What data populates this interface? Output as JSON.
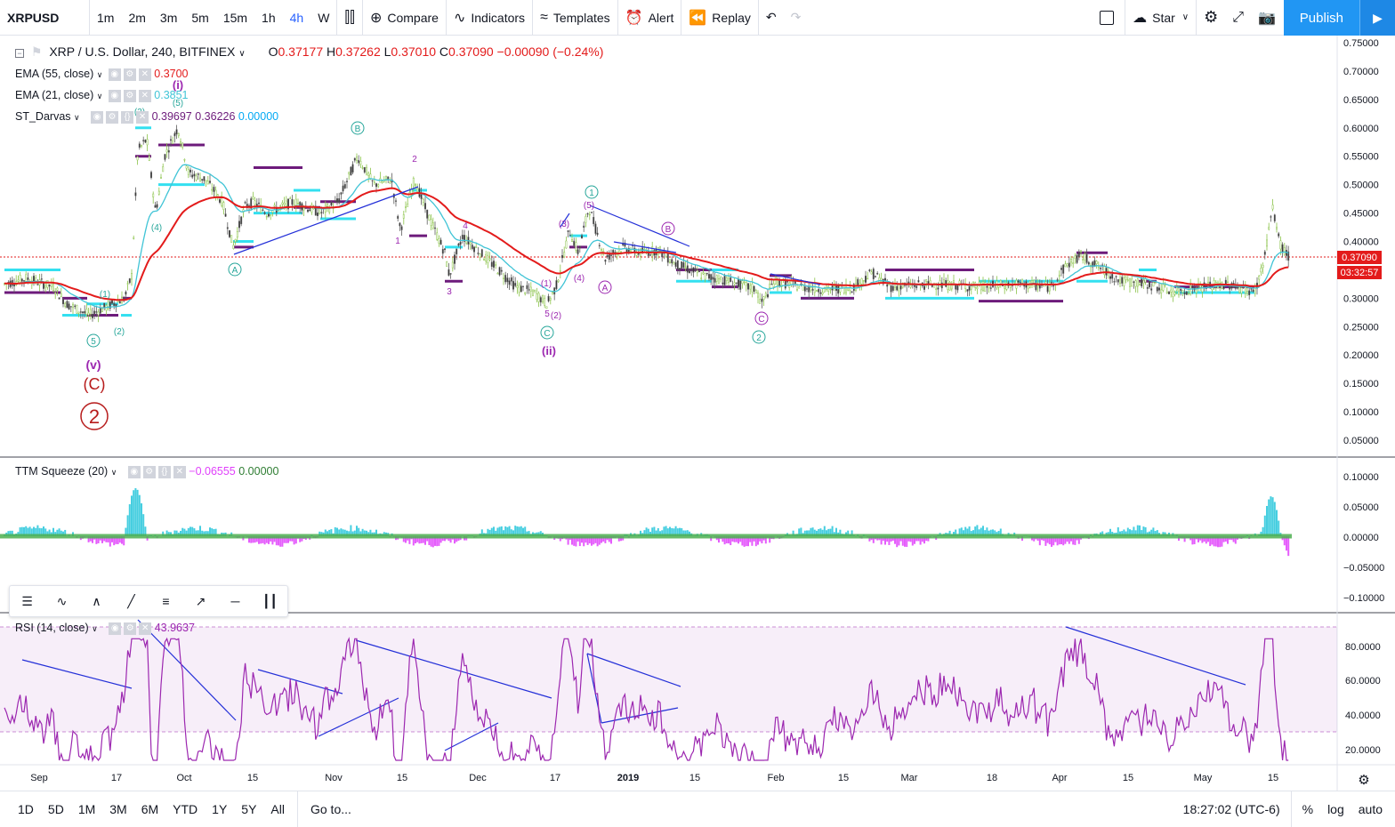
{
  "toolbar": {
    "symbol": "XRPUSD",
    "intervals": [
      "1m",
      "2m",
      "3m",
      "5m",
      "15m",
      "1h",
      "4h",
      "W"
    ],
    "active_interval": "4h",
    "compare": "Compare",
    "indicators": "Indicators",
    "templates": "Templates",
    "alert": "Alert",
    "replay": "Replay",
    "star": "Star",
    "publish": "Publish"
  },
  "legend": {
    "title": "XRP / U.S. Dollar, 240, BITFINEX",
    "o_label": "O",
    "o": "0.37177",
    "h_label": "H",
    "h": "0.37262",
    "l_label": "L",
    "l": "0.37010",
    "c_label": "C",
    "c": "0.37090",
    "change": "−0.00090 (−0.24%)",
    "ema55_name": "EMA (55, close)",
    "ema55_val": "0.3700",
    "ema21_name": "EMA (21, close)",
    "ema21_val": "0.3851",
    "darvas_name": "ST_Darvas",
    "darvas_v1": "0.39697",
    "darvas_v2": "0.36226",
    "darvas_v3": "0.00000",
    "ttm_name": "TTM Squeeze (20)",
    "ttm_v1": "−0.06555",
    "ttm_v2": "0.00000",
    "rsi_name": "RSI (14, close)",
    "rsi_val": "43.9637"
  },
  "price_axis": [
    "0.75000",
    "0.70000",
    "0.65000",
    "0.60000",
    "0.55000",
    "0.50000",
    "0.45000",
    "0.40000",
    "0.35000",
    "0.30000",
    "0.25000",
    "0.20000",
    "0.15000",
    "0.10000",
    "0.05000"
  ],
  "last_price": "0.37090",
  "countdown": "03:32:57",
  "ttm_axis": [
    "0.10000",
    "0.05000",
    "0.00000",
    "−0.05000",
    "−0.10000"
  ],
  "rsi_axis": [
    "80.0000",
    "60.0000",
    "40.0000",
    "20.0000"
  ],
  "time_axis": [
    "Sep",
    "17",
    "Oct",
    "15",
    "Nov",
    "15",
    "Dec",
    "17",
    "2019",
    "15",
    "Feb",
    "15",
    "Mar",
    "18",
    "Apr",
    "15",
    "May",
    "15"
  ],
  "wave_labels": {
    "v": "(v)",
    "C": "(C)",
    "two": "2",
    "i": "(i)",
    "ii": "(ii)",
    "w5a": "5",
    "w5b": "(5)",
    "w3": "(3)",
    "w4": "(4)",
    "w1": "(1)",
    "w2": "(2)",
    "A": "A",
    "B": "B",
    "Cc": "C",
    "n1": "1",
    "n2": "2",
    "n3": "3",
    "n4": "4",
    "n5": "5",
    "n_one": "1",
    "n_two": "2"
  },
  "bottombar": {
    "ranges": [
      "1D",
      "5D",
      "1M",
      "3M",
      "6M",
      "YTD",
      "1Y",
      "5Y",
      "All"
    ],
    "goto": "Go to...",
    "clock": "18:27:02 (UTC-6)",
    "pct": "%",
    "log": "log",
    "auto": "auto"
  },
  "colors": {
    "ema55": "#e31b1b",
    "ema21": "#40c4d6",
    "darvas_cyan": "#33e0f0",
    "darvas_purple": "#6d1b7b",
    "rsi": "#9c27b0",
    "accent": "#2962ff"
  }
}
